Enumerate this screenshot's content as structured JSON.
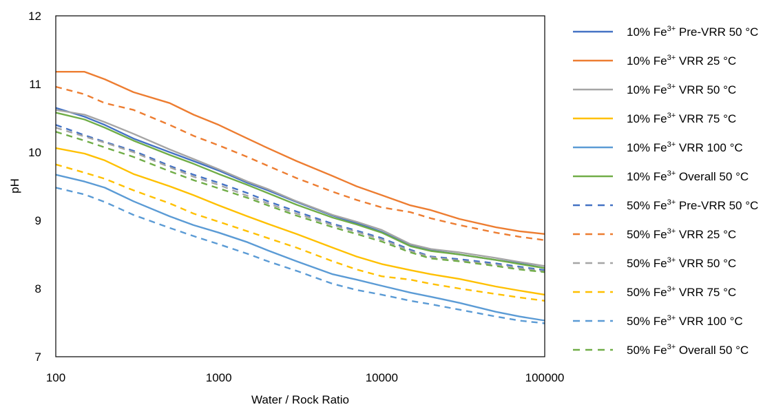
{
  "chart_data": {
    "type": "line",
    "xlabel": "Water / Rock Ratio",
    "ylabel": "pH",
    "x_scale": "log",
    "xlim": [
      100,
      100000
    ],
    "ylim": [
      7,
      12
    ],
    "x_ticks": [
      "100",
      "1000",
      "10000",
      "100000"
    ],
    "y_ticks": [
      "7",
      "8",
      "9",
      "10",
      "11",
      "12"
    ],
    "grid": false,
    "legend_position": "right",
    "x": [
      100,
      150,
      200,
      300,
      500,
      700,
      1000,
      1500,
      2000,
      3000,
      5000,
      7000,
      10000,
      15000,
      20000,
      30000,
      50000,
      70000,
      100000
    ],
    "series": [
      {
        "name": "10% Fe3+ Pre-VRR 50 °C",
        "label_main": "10% Fe",
        "label_sup": "3+",
        "label_rest": " Pre-VRR 50 °C",
        "color": "#4472C4",
        "dash": false,
        "values": [
          10.65,
          10.52,
          10.4,
          10.2,
          10.0,
          9.87,
          9.73,
          9.55,
          9.44,
          9.27,
          9.07,
          8.96,
          8.83,
          8.63,
          8.56,
          8.5,
          8.42,
          8.37,
          8.3
        ]
      },
      {
        "name": "10% Fe3+ VRR 25 °C",
        "label_main": "10% Fe",
        "label_sup": "3+",
        "label_rest": " VRR 25 °C",
        "color": "#ED7D31",
        "dash": false,
        "values": [
          11.18,
          11.18,
          11.07,
          10.88,
          10.72,
          10.55,
          10.4,
          10.2,
          10.06,
          9.87,
          9.65,
          9.5,
          9.37,
          9.22,
          9.15,
          9.02,
          8.9,
          8.84,
          8.8
        ]
      },
      {
        "name": "10% Fe3+ VRR 50 °C",
        "label_main": "10% Fe",
        "label_sup": "3+",
        "label_rest": " VRR 50 °C",
        "color": "#A5A5A5",
        "dash": false,
        "values": [
          10.62,
          10.55,
          10.44,
          10.27,
          10.04,
          9.9,
          9.75,
          9.57,
          9.46,
          9.28,
          9.08,
          8.98,
          8.86,
          8.65,
          8.58,
          8.53,
          8.45,
          8.39,
          8.33
        ]
      },
      {
        "name": "10% Fe3+ VRR 75 °C",
        "label_main": "10% Fe",
        "label_sup": "3+",
        "label_rest": " VRR 75 °C",
        "color": "#FFC000",
        "dash": false,
        "values": [
          10.06,
          9.98,
          9.88,
          9.68,
          9.5,
          9.37,
          9.22,
          9.06,
          8.95,
          8.8,
          8.6,
          8.47,
          8.36,
          8.27,
          8.21,
          8.14,
          8.03,
          7.97,
          7.91
        ]
      },
      {
        "name": "10% Fe3+ VRR 100 °C",
        "label_main": "10% Fe",
        "label_sup": "3+",
        "label_rest": " VRR 100 °C",
        "color": "#5B9BD5",
        "dash": false,
        "values": [
          9.67,
          9.57,
          9.48,
          9.28,
          9.06,
          8.93,
          8.82,
          8.68,
          8.56,
          8.4,
          8.21,
          8.13,
          8.04,
          7.94,
          7.88,
          7.79,
          7.66,
          7.59,
          7.53
        ]
      },
      {
        "name": "10% Fe3+ Overall 50 °C",
        "label_main": "10% Fe",
        "label_sup": "3+",
        "label_rest": " Overall 50 °C",
        "color": "#70AD47",
        "dash": false,
        "values": [
          10.58,
          10.48,
          10.36,
          10.17,
          9.96,
          9.83,
          9.68,
          9.52,
          9.4,
          9.23,
          9.04,
          8.94,
          8.82,
          8.62,
          8.55,
          8.5,
          8.42,
          8.36,
          8.3
        ]
      },
      {
        "name": "50% Fe3+ Pre-VRR 50 °C",
        "label_main": "50% Fe",
        "label_sup": "3+",
        "label_rest": " Pre-VRR 50 °C",
        "color": "#4472C4",
        "dash": true,
        "values": [
          10.4,
          10.25,
          10.15,
          10.02,
          9.8,
          9.67,
          9.55,
          9.4,
          9.28,
          9.13,
          8.95,
          8.85,
          8.74,
          8.57,
          8.47,
          8.43,
          8.37,
          8.32,
          8.27
        ]
      },
      {
        "name": "50% Fe3+ VRR 25 °C",
        "label_main": "50% Fe",
        "label_sup": "3+",
        "label_rest": " VRR 25 °C",
        "color": "#ED7D31",
        "dash": true,
        "values": [
          10.96,
          10.85,
          10.72,
          10.62,
          10.4,
          10.24,
          10.1,
          9.93,
          9.8,
          9.62,
          9.42,
          9.3,
          9.19,
          9.12,
          9.03,
          8.93,
          8.82,
          8.76,
          8.71
        ]
      },
      {
        "name": "50% Fe3+ VRR 50 °C",
        "label_main": "50% Fe",
        "label_sup": "3+",
        "label_rest": " VRR 50 °C",
        "color": "#A5A5A5",
        "dash": true,
        "values": [
          10.36,
          10.23,
          10.14,
          10.0,
          9.78,
          9.64,
          9.52,
          9.36,
          9.25,
          9.1,
          8.93,
          8.83,
          8.72,
          8.55,
          8.46,
          8.41,
          8.35,
          8.3,
          8.25
        ]
      },
      {
        "name": "50% Fe3+ VRR 75 °C",
        "label_main": "50% Fe",
        "label_sup": "3+",
        "label_rest": " VRR 75 °C",
        "color": "#FFC000",
        "dash": true,
        "values": [
          9.82,
          9.7,
          9.61,
          9.44,
          9.25,
          9.1,
          8.98,
          8.84,
          8.74,
          8.6,
          8.4,
          8.28,
          8.18,
          8.13,
          8.07,
          8.0,
          7.92,
          7.87,
          7.82
        ]
      },
      {
        "name": "50% Fe3+ VRR 100 °C",
        "label_main": "50% Fe",
        "label_sup": "3+",
        "label_rest": " VRR 100 °C",
        "color": "#5B9BD5",
        "dash": true,
        "values": [
          9.48,
          9.38,
          9.27,
          9.08,
          8.89,
          8.77,
          8.65,
          8.51,
          8.4,
          8.26,
          8.07,
          7.98,
          7.91,
          7.82,
          7.77,
          7.69,
          7.59,
          7.53,
          7.49
        ]
      },
      {
        "name": "50% Fe3+ Overall 50 °C",
        "label_main": "50% Fe",
        "label_sup": "3+",
        "label_rest": " Overall 50 °C",
        "color": "#70AD47",
        "dash": true,
        "values": [
          10.3,
          10.17,
          10.07,
          9.93,
          9.72,
          9.59,
          9.47,
          9.33,
          9.22,
          9.07,
          8.9,
          8.8,
          8.69,
          8.53,
          8.44,
          8.4,
          8.33,
          8.28,
          8.24
        ]
      }
    ]
  }
}
